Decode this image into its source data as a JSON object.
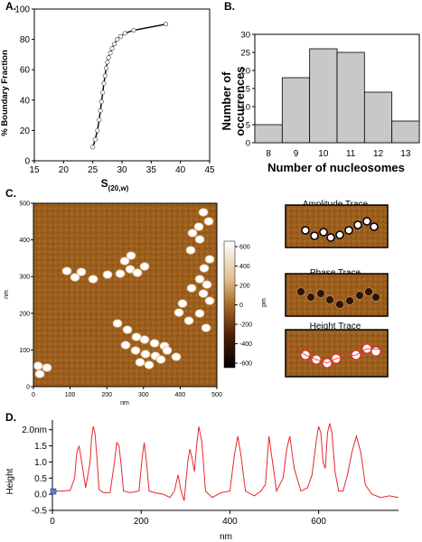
{
  "panels": {
    "A": {
      "label": "A."
    },
    "B": {
      "label": "B."
    },
    "C": {
      "label": "C."
    },
    "D": {
      "label": "D."
    }
  },
  "chart_data": [
    {
      "id": "A",
      "type": "line",
      "xlabel": "S",
      "xlabel_sub": "(20,w)",
      "ylabel": "% Boundary Fraction",
      "xlim": [
        15,
        45
      ],
      "ylim": [
        0,
        100
      ],
      "xticks": [
        15,
        20,
        25,
        30,
        35,
        40,
        45
      ],
      "yticks": [
        0,
        20,
        40,
        60,
        80,
        100
      ],
      "series": [
        {
          "x": [
            25.0,
            25.4,
            25.8,
            26.1,
            26.3,
            26.5,
            26.7,
            26.9,
            27.1,
            27.3,
            27.5,
            27.7,
            28.0,
            28.3,
            28.7,
            29.2,
            29.8,
            30.5,
            32.0,
            37.5
          ],
          "y": [
            9,
            14,
            20,
            27,
            33,
            39,
            45,
            51,
            56,
            61,
            65,
            68,
            71,
            74,
            77,
            80,
            82,
            84,
            86,
            90
          ]
        }
      ]
    },
    {
      "id": "B",
      "type": "bar",
      "xlabel": "Number of nucleosomes",
      "ylabel": "Number of occurrences",
      "categories": [
        "8",
        "9",
        "10",
        "11",
        "12",
        "13"
      ],
      "values": [
        5,
        18,
        26,
        25,
        14,
        6
      ],
      "ylim": [
        0,
        30
      ],
      "yticks": [
        0,
        5,
        10,
        15,
        20,
        25,
        30
      ]
    },
    {
      "id": "C",
      "type": "heatmap",
      "xlabel": "nm",
      "ylabel": "nm",
      "xticks": [
        0,
        100,
        200,
        300,
        400,
        500
      ],
      "yticks": [
        0,
        100,
        200,
        300,
        400,
        500
      ],
      "colorbar": {
        "ticks": [
          600,
          400,
          200,
          0,
          -200,
          -400,
          -600
        ],
        "unit": "pm"
      },
      "insets": [
        "Amplitude Trace",
        "Phase Trace",
        "Height Trace"
      ]
    },
    {
      "id": "D",
      "type": "line",
      "xlabel": "nm",
      "ylabel": "Height",
      "xlim": [
        0,
        780
      ],
      "ylim": [
        -0.5,
        2.3
      ],
      "xticks": [
        0,
        200,
        400,
        600
      ],
      "yticks_labels": [
        "-0.5",
        "0.0",
        "0.5",
        "1.0",
        "1.5",
        "2.0nm"
      ],
      "yticks": [
        -0.5,
        0.0,
        0.5,
        1.0,
        1.5,
        2.0
      ],
      "series": [
        {
          "x": [
            0,
            20,
            40,
            50,
            55,
            60,
            65,
            75,
            85,
            88,
            92,
            96,
            100,
            105,
            115,
            130,
            140,
            145,
            150,
            155,
            160,
            175,
            195,
            202,
            207,
            212,
            218,
            230,
            250,
            265,
            275,
            283,
            290,
            297,
            305,
            310,
            315,
            320,
            325,
            330,
            337,
            345,
            360,
            380,
            400,
            410,
            418,
            425,
            435,
            455,
            470,
            480,
            488,
            495,
            505,
            520,
            528,
            535,
            545,
            560,
            575,
            585,
            595,
            600,
            605,
            610,
            615,
            620,
            625,
            630,
            637,
            645,
            655,
            665,
            675,
            685,
            695,
            705,
            720,
            740,
            760,
            780
          ],
          "y": [
            0.1,
            0.1,
            0.12,
            0.5,
            1.3,
            1.5,
            1.1,
            0.2,
            1.0,
            1.7,
            2.1,
            1.9,
            1.2,
            0.15,
            0.05,
            0.05,
            1.0,
            1.6,
            1.5,
            0.9,
            0.1,
            0.05,
            0.1,
            1.1,
            1.6,
            1.0,
            0.1,
            0.05,
            0.0,
            -0.1,
            0.1,
            0.6,
            0.1,
            -0.2,
            1.0,
            1.4,
            1.1,
            0.7,
            1.5,
            2.1,
            1.6,
            0.1,
            -0.1,
            0.05,
            0.1,
            1.2,
            1.8,
            1.2,
            0.1,
            -0.05,
            0.1,
            0.3,
            1.8,
            1.1,
            0.1,
            0.5,
            1.4,
            1.8,
            0.8,
            0.1,
            0.2,
            0.6,
            1.7,
            2.1,
            1.9,
            1.0,
            0.8,
            1.9,
            2.2,
            1.9,
            0.7,
            0.1,
            0.1,
            0.6,
            1.3,
            1.8,
            1.3,
            0.3,
            0.0,
            -0.1,
            -0.05,
            -0.1
          ]
        }
      ]
    }
  ]
}
